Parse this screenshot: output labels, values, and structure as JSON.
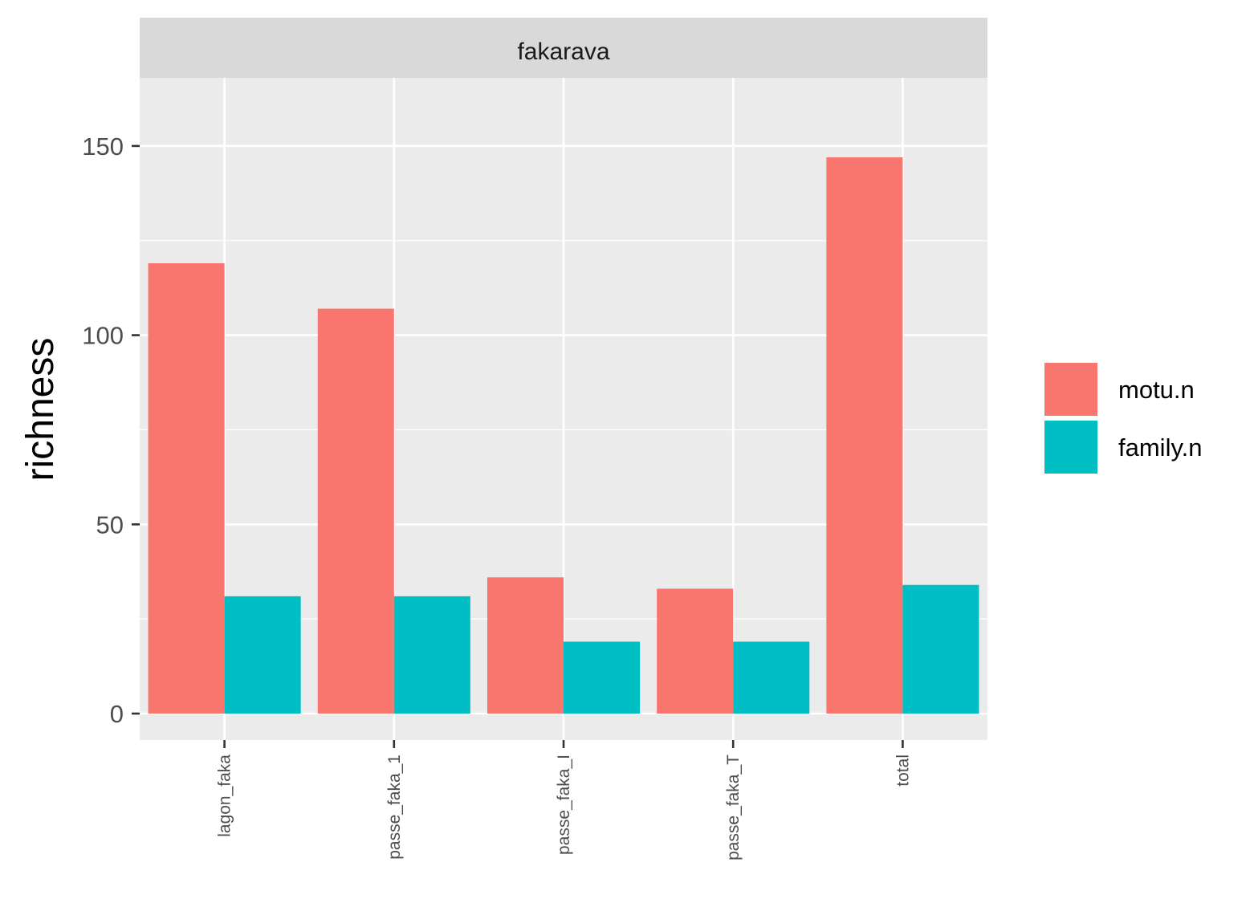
{
  "chart_data": {
    "type": "bar",
    "facet": "fakarava",
    "categories": [
      "lagon_faka",
      "passe_faka_1",
      "passe_faka_I",
      "passe_faka_T",
      "total"
    ],
    "series": [
      {
        "name": "motu.n",
        "color": "#F8766D",
        "values": [
          119,
          107,
          36,
          33,
          147
        ]
      },
      {
        "name": "family.n",
        "color": "#00BFC4",
        "values": [
          31,
          31,
          19,
          19,
          34
        ]
      }
    ],
    "xlabel": "",
    "ylabel": "richness",
    "ylim": [
      -7,
      168
    ],
    "yticks": [
      0,
      50,
      100,
      150
    ],
    "grid": true,
    "legend_position": "right",
    "panel_background": "#EBEBEB",
    "strip_background": "#D9D9D9"
  }
}
